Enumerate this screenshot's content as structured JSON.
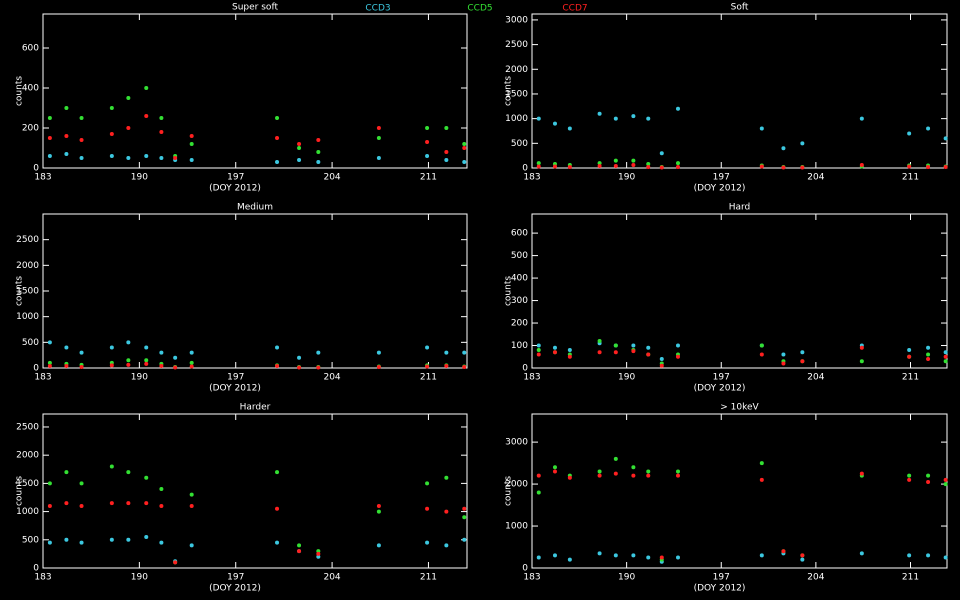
{
  "chart_data": [
    {
      "type": "scatter",
      "title": "Super soft",
      "xlabel": "(DOY 2012)",
      "ylabel": "counts",
      "x": [
        183.5,
        184.7,
        185.8,
        188.0,
        189.2,
        190.5,
        191.6,
        192.6,
        193.8,
        200.0,
        201.6,
        203.0,
        207.4,
        210.9,
        212.3,
        213.6
      ],
      "xlim": [
        183,
        213.8
      ],
      "xticks": [
        183,
        190,
        197,
        204,
        211
      ],
      "ylim": [
        0,
        770
      ],
      "yticks": [
        0,
        200,
        400,
        600
      ],
      "series": [
        {
          "name": "CCD3",
          "color": "#3cc8e0",
          "values": [
            60,
            70,
            50,
            60,
            50,
            60,
            50,
            40,
            40,
            30,
            40,
            30,
            50,
            60,
            40,
            30
          ]
        },
        {
          "name": "CCD5",
          "color": "#33e033",
          "values": [
            250,
            300,
            250,
            300,
            350,
            400,
            250,
            60,
            120,
            250,
            100,
            80,
            150,
            200,
            200,
            120
          ]
        },
        {
          "name": "CCD7",
          "color": "#ff2020",
          "values": [
            150,
            160,
            140,
            170,
            200,
            260,
            180,
            50,
            160,
            150,
            120,
            140,
            200,
            130,
            80,
            100
          ]
        }
      ]
    },
    {
      "type": "scatter",
      "title": "Soft",
      "xlabel": "(DOY 2012)",
      "ylabel": "counts",
      "x": [
        183.5,
        184.7,
        185.8,
        188.0,
        189.2,
        190.5,
        191.6,
        192.6,
        193.8,
        200.0,
        201.6,
        203.0,
        207.4,
        210.9,
        212.3,
        213.6
      ],
      "xlim": [
        183,
        213.7
      ],
      "xticks": [
        183,
        190,
        197,
        204,
        211
      ],
      "ylim": [
        0,
        3120
      ],
      "yticks": [
        0,
        500,
        1000,
        1500,
        2000,
        2500,
        3000
      ],
      "series": [
        {
          "color": "#3cc8e0",
          "values": [
            1000,
            900,
            800,
            1100,
            1000,
            1050,
            1000,
            300,
            1200,
            800,
            400,
            500,
            1000,
            700,
            800,
            600
          ]
        },
        {
          "color": "#33e033",
          "values": [
            100,
            80,
            60,
            100,
            150,
            150,
            80,
            20,
            100,
            50,
            20,
            20,
            30,
            50,
            50,
            30
          ]
        },
        {
          "color": "#ff2020",
          "values": [
            30,
            30,
            20,
            40,
            40,
            60,
            20,
            10,
            20,
            30,
            10,
            10,
            60,
            30,
            20,
            20
          ]
        }
      ]
    },
    {
      "type": "scatter",
      "title": "Medium",
      "xlabel": "(DOY 2012)",
      "ylabel": "counts",
      "x": [
        183.5,
        184.7,
        185.8,
        188.0,
        189.2,
        190.5,
        191.6,
        192.6,
        193.8,
        200.0,
        201.6,
        203.0,
        207.4,
        210.9,
        212.3,
        213.6
      ],
      "xlim": [
        183,
        213.8
      ],
      "xticks": [
        183,
        190,
        197,
        204,
        211
      ],
      "ylim": [
        0,
        3000
      ],
      "yticks": [
        0,
        500,
        1000,
        1500,
        2000,
        2500
      ],
      "series": [
        {
          "color": "#3cc8e0",
          "values": [
            500,
            400,
            300,
            400,
            500,
            400,
            300,
            200,
            300,
            400,
            200,
            300,
            300,
            400,
            300,
            300
          ]
        },
        {
          "color": "#33e033",
          "values": [
            100,
            80,
            60,
            100,
            150,
            150,
            80,
            20,
            100,
            50,
            20,
            20,
            30,
            50,
            50,
            30
          ]
        },
        {
          "color": "#ff2020",
          "values": [
            40,
            40,
            20,
            50,
            60,
            80,
            40,
            10,
            30,
            40,
            10,
            10,
            20,
            30,
            40,
            20
          ]
        }
      ]
    },
    {
      "type": "scatter",
      "title": "Hard",
      "xlabel": "(DOY 2012)",
      "ylabel": "counts",
      "x": [
        183.5,
        184.7,
        185.8,
        188.0,
        189.2,
        190.5,
        191.6,
        192.6,
        193.8,
        200.0,
        201.6,
        203.0,
        207.4,
        210.9,
        212.3,
        213.6
      ],
      "xlim": [
        183,
        213.7
      ],
      "xticks": [
        183,
        190,
        197,
        204,
        211
      ],
      "ylim": [
        0,
        685
      ],
      "yticks": [
        0,
        100,
        200,
        300,
        400,
        500,
        600
      ],
      "series": [
        {
          "color": "#3cc8e0",
          "values": [
            100,
            90,
            80,
            110,
            100,
            100,
            90,
            40,
            100,
            100,
            60,
            70,
            100,
            80,
            90,
            70
          ]
        },
        {
          "color": "#33e033",
          "values": [
            80,
            70,
            60,
            120,
            100,
            80,
            60,
            20,
            60,
            100,
            30,
            30,
            30,
            50,
            60,
            30
          ]
        },
        {
          "color": "#ff2020",
          "values": [
            60,
            70,
            50,
            70,
            70,
            75,
            60,
            10,
            50,
            60,
            20,
            30,
            90,
            50,
            40,
            50
          ]
        }
      ]
    },
    {
      "type": "scatter",
      "title": "Harder",
      "xlabel": "(DOY 2012)",
      "ylabel": "counts",
      "x": [
        183.5,
        184.7,
        185.8,
        188.0,
        189.2,
        190.5,
        191.6,
        192.6,
        193.8,
        200.0,
        201.6,
        203.0,
        207.4,
        210.9,
        212.3,
        213.6
      ],
      "xlim": [
        183,
        213.8
      ],
      "xticks": [
        183,
        190,
        197,
        204,
        211
      ],
      "ylim": [
        0,
        2730
      ],
      "yticks": [
        0,
        500,
        1000,
        1500,
        2000,
        2500
      ],
      "series": [
        {
          "color": "#3cc8e0",
          "values": [
            450,
            500,
            450,
            500,
            500,
            550,
            450,
            120,
            400,
            450,
            300,
            200,
            400,
            450,
            400,
            500
          ]
        },
        {
          "color": "#33e033",
          "values": [
            1500,
            1700,
            1500,
            1800,
            1700,
            1600,
            1400,
            100,
            1300,
            1700,
            400,
            300,
            1000,
            1500,
            1600,
            900
          ]
        },
        {
          "color": "#ff2020",
          "values": [
            1100,
            1150,
            1100,
            1150,
            1150,
            1150,
            1100,
            100,
            1100,
            1050,
            300,
            250,
            1100,
            1050,
            1000,
            1050
          ]
        }
      ]
    },
    {
      "type": "scatter",
      "title": "> 10keV",
      "xlabel": "(DOY 2012)",
      "ylabel": "counts",
      "x": [
        183.5,
        184.7,
        185.8,
        188.0,
        189.2,
        190.5,
        191.6,
        192.6,
        193.8,
        200.0,
        201.6,
        203.0,
        207.4,
        210.9,
        212.3,
        213.6
      ],
      "xlim": [
        183,
        213.7
      ],
      "xticks": [
        183,
        190,
        197,
        204,
        211
      ],
      "ylim": [
        0,
        3670
      ],
      "yticks": [
        0,
        1000,
        2000,
        3000
      ],
      "series": [
        {
          "color": "#3cc8e0",
          "values": [
            250,
            300,
            200,
            350,
            300,
            300,
            250,
            150,
            250,
            300,
            350,
            200,
            350,
            300,
            300,
            250
          ]
        },
        {
          "color": "#33e033",
          "values": [
            1800,
            2400,
            2200,
            2300,
            2600,
            2400,
            2300,
            200,
            2300,
            2500,
            400,
            300,
            2200,
            2200,
            2200,
            2000
          ]
        },
        {
          "color": "#ff2020",
          "values": [
            2200,
            2300,
            2150,
            2200,
            2250,
            2200,
            2200,
            250,
            2200,
            2100,
            400,
            300,
            2250,
            2100,
            2050,
            2100
          ]
        }
      ]
    }
  ]
}
